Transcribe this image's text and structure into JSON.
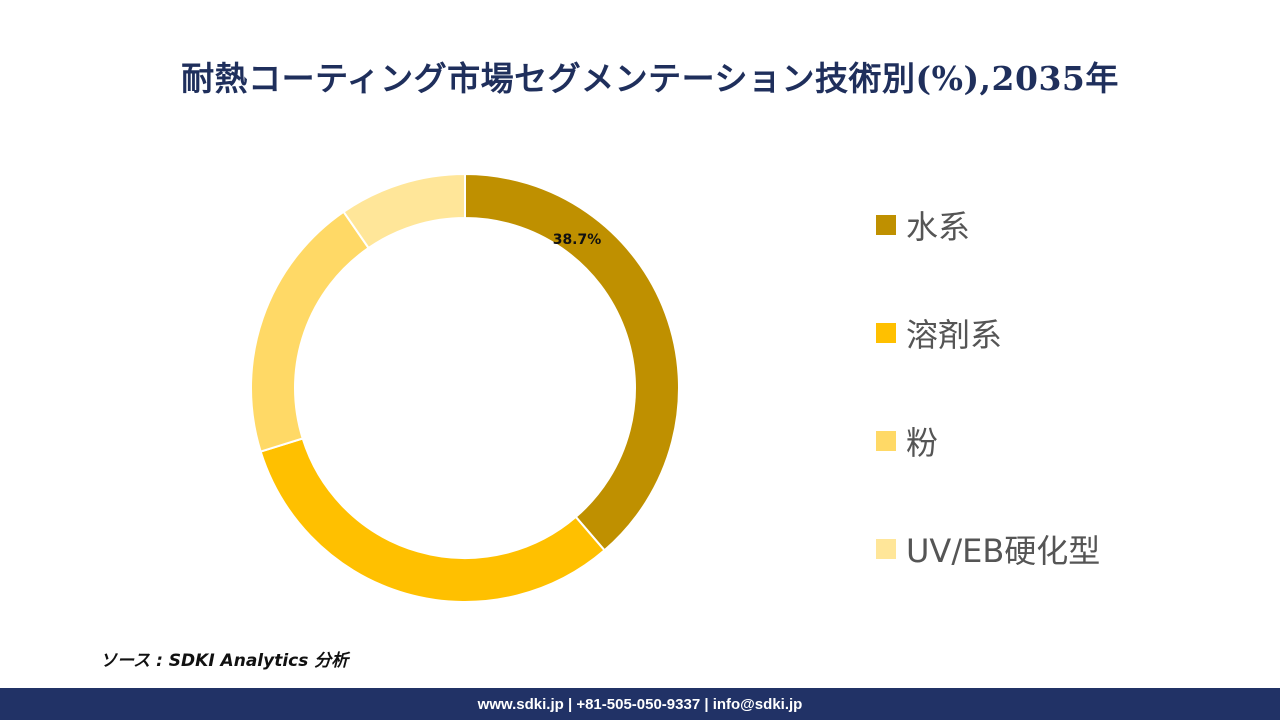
{
  "title": "耐熱コーティング市場セグメンテーション技術別(%),2035年",
  "chart_data": {
    "type": "pie",
    "variant": "donut",
    "categories": [
      "水系",
      "溶剤系",
      "粉",
      "UV/EB硬化型"
    ],
    "values": [
      38.7,
      31.5,
      20.2,
      9.6
    ],
    "data_labels": [
      "38.7%",
      "",
      "",
      ""
    ],
    "colors": [
      "#bf9000",
      "#ffc000",
      "#ffd966",
      "#ffe699"
    ],
    "legend_position": "right"
  },
  "source": "ソース : SDKI Analytics 分析",
  "footer": "www.sdki.jp | +81-505-050-9337 | info@sdki.jp"
}
